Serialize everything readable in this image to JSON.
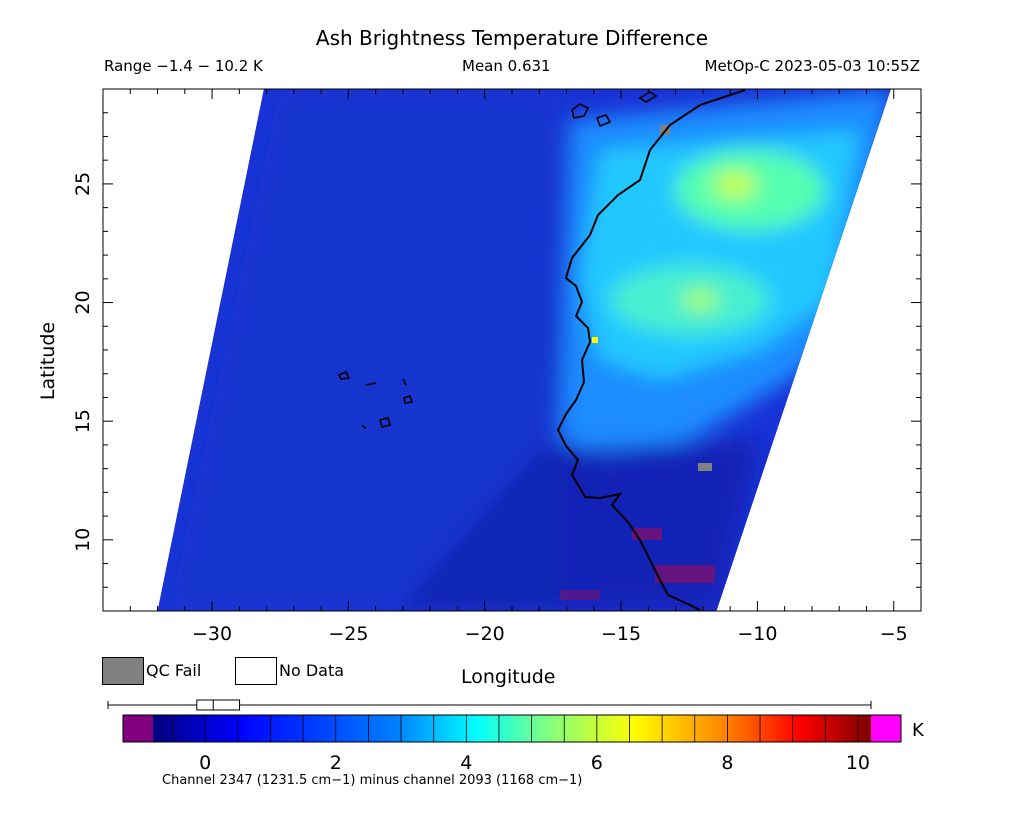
{
  "header": {
    "title": "Ash Brightness Temperature Difference",
    "range": "Range −1.4 − 10.2 K",
    "mean": "Mean 0.631",
    "satellite_time": "MetOp-C 2023-05-03 10:55Z"
  },
  "axes": {
    "xlabel": "Longitude",
    "ylabel": "Latitude",
    "xlim": [
      -34,
      -4
    ],
    "ylim": [
      7,
      29
    ],
    "x_ticks": [
      -30,
      -25,
      -20,
      -15,
      -10,
      -5
    ],
    "x_tick_labels": [
      "−30",
      "−25",
      "−20",
      "−15",
      "−10",
      "−5"
    ],
    "y_ticks": [
      10,
      15,
      20,
      25
    ],
    "y_tick_labels": [
      "10",
      "15",
      "20",
      "25"
    ]
  },
  "legend": {
    "qc_fail": "QC Fail",
    "no_data": "No Data",
    "qc_fail_color": "#808080",
    "no_data_color": "#ffffff"
  },
  "colorbar": {
    "unit": "K",
    "vmin": -0.8,
    "vmax": 10.2,
    "ticks": [
      0,
      2,
      4,
      6,
      8,
      10
    ],
    "tick_labels": [
      "0",
      "2",
      "4",
      "6",
      "8",
      "10"
    ],
    "under_color": "#800080",
    "over_color": "#ff00ff",
    "caption": "Channel 2347 (1231.5 cm−1) minus channel 2093 (1168 cm−1)",
    "boxplot": {
      "whisker_low": -1.4,
      "q1": -0.05,
      "median": 0.2,
      "q3": 0.6,
      "whisker_high": 10.2
    }
  },
  "map": {
    "swath_corners_lonlat": [
      [
        -28.1,
        29
      ],
      [
        -5.1,
        29
      ],
      [
        -11.5,
        7
      ],
      [
        -32,
        7
      ]
    ],
    "background_color": "#1a33d6",
    "coastline_color": "#000000"
  }
}
